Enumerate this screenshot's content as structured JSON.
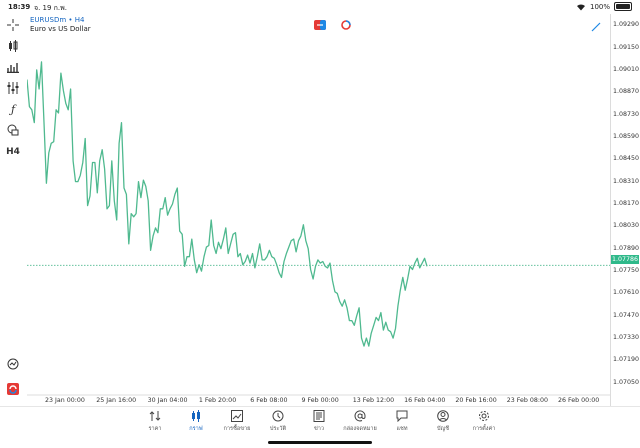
{
  "status": {
    "time": "18:39",
    "date": "จ. 19 ก.พ.",
    "battery": "100%"
  },
  "symbol": {
    "title": "EURUSDm • H4",
    "description": "Euro vs US Dollar"
  },
  "toolbar": {
    "timeframe": "H4"
  },
  "chart_data": {
    "type": "line",
    "series": [
      {
        "values": [
          1.0895,
          1.0878,
          1.0876,
          1.0868,
          1.0901,
          1.0889,
          1.0906,
          1.0868,
          1.083,
          1.0849,
          1.0855,
          1.0856,
          1.0876,
          1.0874,
          1.0899,
          1.0888,
          1.088,
          1.0876,
          1.0889,
          1.0844,
          1.0831,
          1.0831,
          1.0835,
          1.0843,
          1.0858,
          1.0816,
          1.0822,
          1.0843,
          1.0843,
          1.0824,
          1.0844,
          1.0851,
          1.0839,
          1.0814,
          1.0816,
          1.0844,
          1.0819,
          1.0807,
          1.0855,
          1.0868,
          1.0827,
          1.0823,
          1.0792,
          1.0811,
          1.0809,
          1.0811,
          1.0831,
          1.0821,
          1.0832,
          1.0828,
          1.0819,
          1.0788,
          1.0797,
          1.0802,
          1.0799,
          1.0814,
          1.0814,
          1.0821,
          1.081,
          1.0814,
          1.0817,
          1.0823,
          1.0827,
          1.08,
          1.0798,
          1.0778,
          1.0784,
          1.0784,
          1.0795,
          1.0782,
          1.0774,
          1.0779,
          1.0775,
          1.0784,
          1.079,
          1.0791,
          1.0807,
          1.0791,
          1.0786,
          1.0793,
          1.0789,
          1.0795,
          1.0802,
          1.0786,
          1.0792,
          1.0798,
          1.0799,
          1.0784,
          1.0786,
          1.0779,
          1.0781,
          1.0785,
          1.078,
          1.0786,
          1.0777,
          1.0784,
          1.0792,
          1.0782,
          1.0782,
          1.0784,
          1.0788,
          1.0784,
          1.0783,
          1.0779,
          1.0774,
          1.0771,
          1.0781,
          1.0786,
          1.079,
          1.0794,
          1.0795,
          1.0787,
          1.0794,
          1.0797,
          1.0804,
          1.0794,
          1.0789,
          1.0776,
          1.077,
          1.0778,
          1.0782,
          1.078,
          1.0781,
          1.0778,
          1.0777,
          1.078,
          1.0769,
          1.0762,
          1.0761,
          1.0756,
          1.0753,
          1.0757,
          1.0752,
          1.0744,
          1.0744,
          1.0741,
          1.0747,
          1.0752,
          1.0733,
          1.0728,
          1.0733,
          1.0728,
          1.0736,
          1.0741,
          1.0746,
          1.0744,
          1.0749,
          1.0738,
          1.0743,
          1.0738,
          1.0737,
          1.0733,
          1.0739,
          1.0753,
          1.0763,
          1.0771,
          1.0763,
          1.077,
          1.0778,
          1.0776,
          1.078,
          1.0783,
          1.0777,
          1.078,
          1.0783,
          1.0778
        ]
      }
    ],
    "current_price": "1.07786",
    "y_ticks": [
      "1.09290",
      "1.09150",
      "1.09010",
      "1.08870",
      "1.08730",
      "1.08590",
      "1.08450",
      "1.08310",
      "1.08170",
      "1.08030",
      "1.07890",
      "1.07750",
      "1.07610",
      "1.07470",
      "1.07330",
      "1.07190",
      "1.07050"
    ],
    "ylim": [
      1.0698,
      1.0936
    ],
    "x_ticks": [
      "23 Jan 00:00",
      "25 Jan 16:00",
      "30 Jan 04:00",
      "1 Feb 20:00",
      "6 Feb 08:00",
      "9 Feb 00:00",
      "13 Feb 12:00",
      "16 Feb 04:00",
      "20 Feb 16:00",
      "23 Feb 08:00",
      "26 Feb 00:00"
    ],
    "grid": false,
    "line_color": "#4fb98f"
  },
  "tabs": [
    {
      "label": "ราคา",
      "icon": "quotes-icon"
    },
    {
      "label": "กราฟ",
      "icon": "chart-icon"
    },
    {
      "label": "การซื้อขาย",
      "icon": "trade-icon"
    },
    {
      "label": "ประวัติ",
      "icon": "history-icon"
    },
    {
      "label": "ข่าว",
      "icon": "news-icon"
    },
    {
      "label": "กล่องจดหมาย",
      "icon": "mailbox-icon"
    },
    {
      "label": "แชท",
      "icon": "chat-icon"
    },
    {
      "label": "บัญชี",
      "icon": "account-icon"
    },
    {
      "label": "การตั้งค่า",
      "icon": "settings-icon"
    }
  ]
}
